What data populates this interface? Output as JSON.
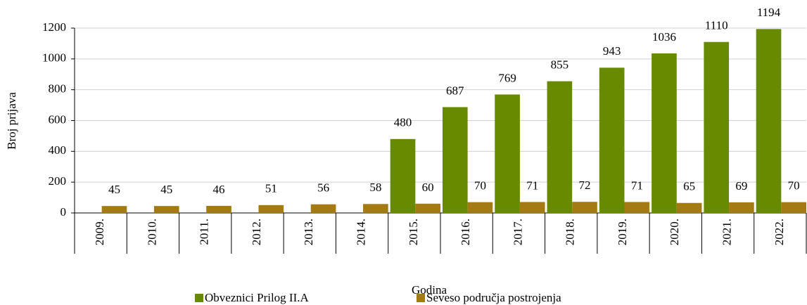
{
  "chart_data": {
    "type": "bar",
    "categories": [
      "2009.",
      "2010.",
      "2011.",
      "2012.",
      "2013.",
      "2014.",
      "2015.",
      "2016.",
      "2017.",
      "2018.",
      "2019.",
      "2020.",
      "2021.",
      "2022."
    ],
    "series": [
      {
        "name": "Obveznici Prilog II.A",
        "color": "#688a00",
        "values": [
          null,
          null,
          null,
          null,
          null,
          null,
          480,
          687,
          769,
          855,
          943,
          1036,
          1110,
          1194
        ]
      },
      {
        "name": "Seveso područja postrojenja",
        "color": "#a37b12",
        "values": [
          45,
          45,
          46,
          51,
          56,
          58,
          60,
          70,
          71,
          72,
          71,
          65,
          69,
          70
        ]
      }
    ],
    "xlabel": "Godina",
    "ylabel": "Broj prijava",
    "ylim": [
      0,
      1200
    ],
    "yticks": [
      0,
      200,
      400,
      600,
      800,
      1000,
      1200
    ],
    "grid": true,
    "legend": "bottom"
  }
}
